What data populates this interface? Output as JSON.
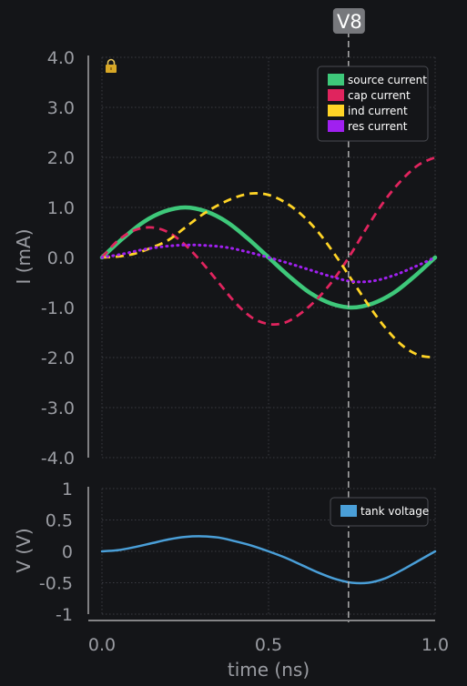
{
  "chart_data": [
    {
      "type": "line",
      "ylabel": "I (mA)",
      "ylim": [
        -4,
        4
      ],
      "yticks": [
        "4.0",
        "3.0",
        "2.0",
        "1.0",
        "0.0",
        "-1.0",
        "-2.0",
        "-3.0",
        "-4.0"
      ],
      "xlim": [
        0,
        1
      ],
      "grid": true,
      "legend_position": "top-right",
      "series": [
        {
          "name": "source current",
          "color": "#3ec87a",
          "style": "solid",
          "x": [
            0,
            0.0625,
            0.125,
            0.1875,
            0.25,
            0.3125,
            0.375,
            0.4375,
            0.5,
            0.5625,
            0.625,
            0.6875,
            0.75,
            0.8125,
            0.875,
            0.9375,
            1.0
          ],
          "y": [
            0,
            0.38,
            0.71,
            0.92,
            1.0,
            0.92,
            0.71,
            0.38,
            0,
            -0.38,
            -0.71,
            -0.92,
            -1.0,
            -0.92,
            -0.71,
            -0.38,
            0
          ]
        },
        {
          "name": "cap current",
          "color": "#e0245e",
          "style": "dashed",
          "x": [
            0,
            0.05,
            0.1,
            0.15,
            0.2,
            0.25,
            0.3,
            0.35,
            0.4,
            0.45,
            0.5,
            0.55,
            0.6,
            0.65,
            0.7,
            0.75,
            0.8,
            0.85,
            0.9,
            0.95,
            1.0
          ],
          "y": [
            0,
            0.35,
            0.55,
            0.6,
            0.5,
            0.25,
            -0.1,
            -0.5,
            -0.9,
            -1.2,
            -1.33,
            -1.3,
            -1.1,
            -0.8,
            -0.4,
            0.1,
            0.65,
            1.15,
            1.55,
            1.85,
            2.0
          ]
        },
        {
          "name": "ind current",
          "color": "#ffd426",
          "style": "dashed",
          "x": [
            0,
            0.05,
            0.1,
            0.15,
            0.2,
            0.25,
            0.3,
            0.35,
            0.4,
            0.45,
            0.5,
            0.55,
            0.6,
            0.65,
            0.7,
            0.75,
            0.8,
            0.85,
            0.9,
            0.95,
            1.0
          ],
          "y": [
            0,
            0.02,
            0.08,
            0.2,
            0.35,
            0.6,
            0.85,
            1.05,
            1.2,
            1.28,
            1.25,
            1.1,
            0.85,
            0.5,
            0.05,
            -0.45,
            -0.95,
            -1.4,
            -1.75,
            -1.95,
            -2.0
          ]
        },
        {
          "name": "res current",
          "color": "#a020f0",
          "style": "dotted",
          "x": [
            0,
            0.0625,
            0.125,
            0.1875,
            0.25,
            0.3125,
            0.375,
            0.4375,
            0.5,
            0.5625,
            0.625,
            0.6875,
            0.75,
            0.8125,
            0.875,
            0.9375,
            1.0
          ],
          "y": [
            0,
            0.07,
            0.16,
            0.22,
            0.25,
            0.24,
            0.2,
            0.11,
            0,
            -0.12,
            -0.25,
            -0.38,
            -0.48,
            -0.47,
            -0.36,
            -0.19,
            0
          ]
        }
      ]
    },
    {
      "type": "line",
      "xlabel": "time (ns)",
      "ylabel": "V (V)",
      "ylim": [
        -1,
        1
      ],
      "yticks": [
        "1",
        "0.5",
        "0",
        "-0.5",
        "-1"
      ],
      "xlim": [
        0,
        1
      ],
      "xticks": [
        "0.0",
        "0.5",
        "1.0"
      ],
      "grid": true,
      "legend_position": "top-right",
      "series": [
        {
          "name": "tank voltage",
          "color": "#4a9fd8",
          "style": "solid",
          "x": [
            0,
            0.05,
            0.1,
            0.15,
            0.2,
            0.25,
            0.3,
            0.35,
            0.4,
            0.45,
            0.5,
            0.55,
            0.6,
            0.65,
            0.7,
            0.75,
            0.8,
            0.85,
            0.9,
            0.95,
            1.0
          ],
          "y": [
            0,
            0.02,
            0.07,
            0.13,
            0.19,
            0.23,
            0.24,
            0.22,
            0.16,
            0.09,
            0,
            -0.1,
            -0.22,
            -0.34,
            -0.44,
            -0.5,
            -0.5,
            -0.43,
            -0.3,
            -0.15,
            0
          ]
        }
      ]
    }
  ],
  "cursor": {
    "label": "V8",
    "x": 0.74
  },
  "icons": {
    "lock": "lock-icon"
  }
}
